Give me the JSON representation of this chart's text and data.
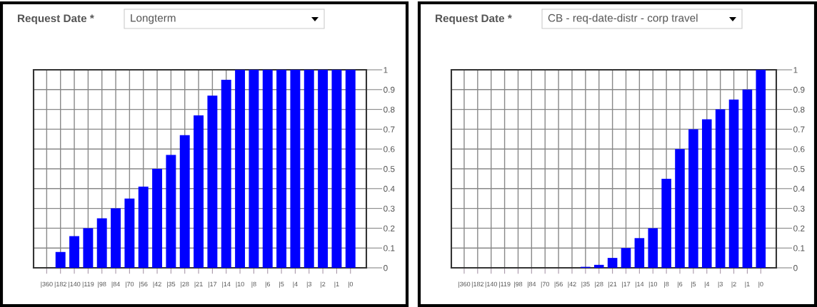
{
  "chart_data": [
    {
      "type": "bar",
      "title": "Request Date *",
      "subtitle": "Longterm",
      "categories": [
        "|360",
        "|182",
        "|140",
        "|119",
        "|98",
        "|84",
        "|70",
        "|56",
        "|42",
        "|35",
        "|28",
        "|21",
        "|17",
        "|14",
        "|10",
        "|8",
        "|6",
        "|5",
        "|4",
        "|3",
        "|2",
        "|1",
        "|0"
      ],
      "values": [
        0,
        0.08,
        0.16,
        0.2,
        0.25,
        0.3,
        0.35,
        0.41,
        0.5,
        0.57,
        0.67,
        0.77,
        0.87,
        0.95,
        1,
        1,
        1,
        1,
        1,
        1,
        1,
        1,
        1
      ],
      "color": "#0000ff",
      "ylim": [
        0,
        1
      ],
      "yticks": [
        0,
        0.1,
        0.2,
        0.3,
        0.4,
        0.5,
        0.6,
        0.7,
        0.8,
        0.9,
        1
      ],
      "grid": true
    },
    {
      "type": "bar",
      "title": "Request Date *",
      "subtitle": "CB - req-date-distr - corp travel",
      "categories": [
        "|360",
        "|182",
        "|140",
        "|119",
        "|98",
        "|84",
        "|70",
        "|56",
        "|42",
        "|35",
        "|28",
        "|21",
        "|17",
        "|14",
        "|10",
        "|8",
        "|6",
        "|5",
        "|4",
        "|3",
        "|2",
        "|1",
        "|0"
      ],
      "values": [
        0,
        0,
        0,
        0,
        0,
        0,
        0,
        0,
        0,
        0.005,
        0.015,
        0.05,
        0.1,
        0.15,
        0.2,
        0.45,
        0.6,
        0.7,
        0.75,
        0.8,
        0.85,
        0.9,
        1
      ],
      "color": "#0000ff",
      "ylim": [
        0,
        1
      ],
      "yticks": [
        0,
        0.1,
        0.2,
        0.3,
        0.4,
        0.5,
        0.6,
        0.7,
        0.8,
        0.9,
        1
      ],
      "grid": true
    }
  ]
}
